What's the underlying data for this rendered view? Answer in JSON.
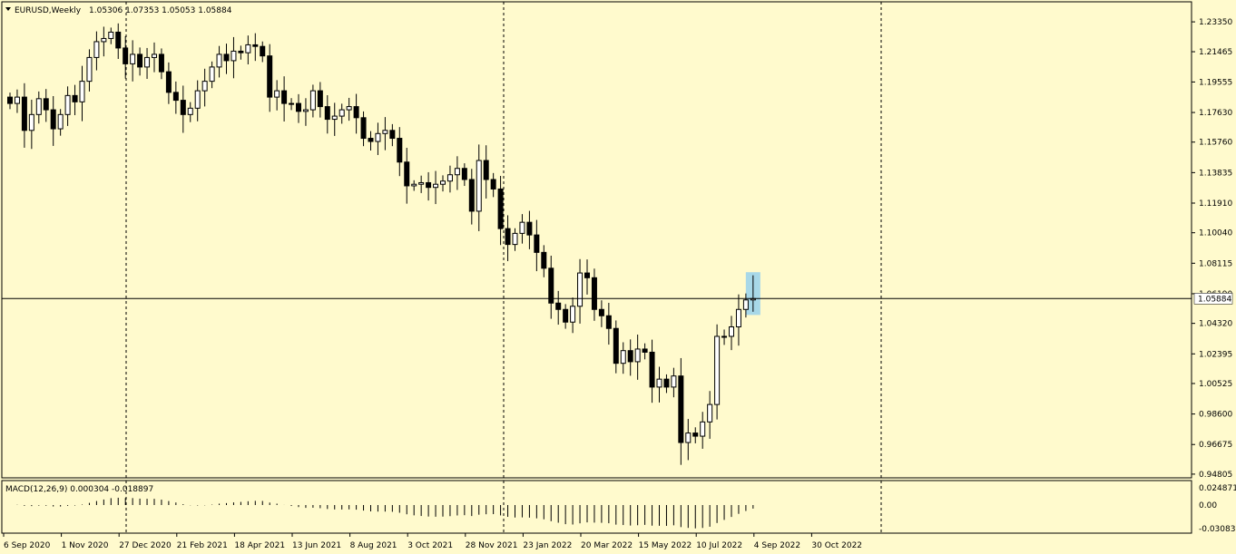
{
  "header": {
    "symbol_timeframe": "EURUSD,Weekly",
    "ohlc": "1.05306 1.07353 1.05053 1.05884"
  },
  "indicator": {
    "label": "MACD(12,26,9) 0.000304 -0.018897",
    "ticks": [
      "0.024871",
      "0.00",
      "-0.030833"
    ]
  },
  "price_axis": {
    "ticks": [
      "1.23350",
      "1.21465",
      "1.19555",
      "1.17630",
      "1.15760",
      "1.13835",
      "1.11910",
      "1.10040",
      "1.08115",
      "1.06190",
      "1.04320",
      "1.02395",
      "1.00525",
      "0.98600",
      "0.96675",
      "0.94805"
    ],
    "current_price": "1.05884"
  },
  "time_axis": {
    "ticks": [
      "6 Sep 2020",
      "1 Nov 2020",
      "27 Dec 2020",
      "21 Feb 2021",
      "18 Apr 2021",
      "13 Jun 2021",
      "8 Aug 2021",
      "3 Oct 2021",
      "28 Nov 2021",
      "23 Jan 2022",
      "20 Mar 2022",
      "15 May 2022",
      "10 Jul 2022",
      "4 Sep 2022",
      "30 Oct 2022"
    ]
  },
  "colors": {
    "background": "#fffacd",
    "highlight": "#a8d8e8",
    "bull": "#ffffff",
    "bear": "#000000"
  },
  "chart_data": {
    "type": "candlestick",
    "symbol": "EURUSD",
    "timeframe": "Weekly",
    "ylim": [
      0.948,
      1.245
    ],
    "grid": false,
    "closes": [
      1.182,
      1.186,
      1.165,
      1.175,
      1.185,
      1.178,
      1.166,
      1.175,
      1.187,
      1.183,
      1.196,
      1.211,
      1.221,
      1.223,
      1.227,
      1.217,
      1.207,
      1.213,
      1.205,
      1.211,
      1.213,
      1.202,
      1.189,
      1.184,
      1.175,
      1.179,
      1.19,
      1.196,
      1.205,
      1.213,
      1.209,
      1.215,
      1.214,
      1.219,
      1.218,
      1.212,
      1.186,
      1.19,
      1.182,
      1.182,
      1.177,
      1.178,
      1.19,
      1.18,
      1.172,
      1.174,
      1.178,
      1.18,
      1.173,
      1.16,
      1.158,
      1.163,
      1.165,
      1.16,
      1.145,
      1.13,
      1.131,
      1.132,
      1.129,
      1.131,
      1.133,
      1.137,
      1.141,
      1.134,
      1.114,
      1.146,
      1.134,
      1.128,
      1.103,
      1.093,
      1.1,
      1.107,
      1.099,
      1.088,
      1.078,
      1.056,
      1.052,
      1.044,
      1.054,
      1.075,
      1.072,
      1.052,
      1.048,
      1.04,
      1.018,
      1.026,
      1.019,
      1.027,
      1.025,
      1.003,
      1.008,
      1.003,
      1.01,
      0.968,
      0.974,
      0.972,
      0.981,
      0.992,
      1.035,
      1.035,
      1.041,
      1.052,
      1.058,
      1.05884
    ]
  }
}
